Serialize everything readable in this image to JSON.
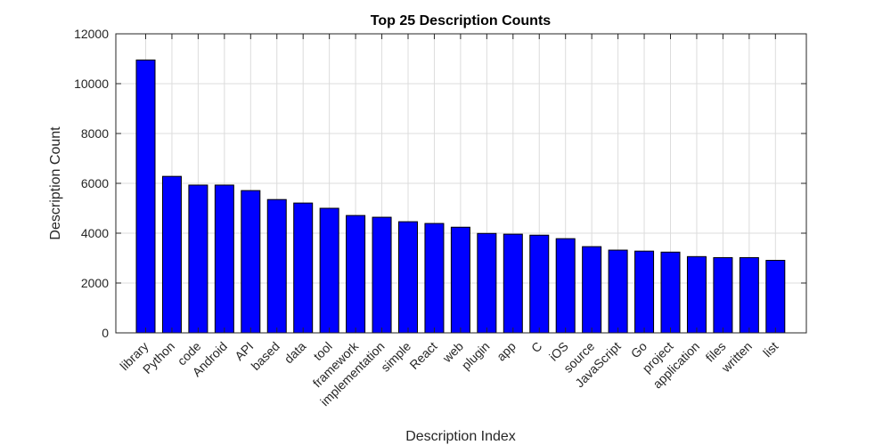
{
  "chart_data": {
    "type": "bar",
    "title": "Top 25 Description Counts",
    "xlabel": "Description Index",
    "ylabel": "Description Count",
    "ylim": [
      0,
      12000
    ],
    "yticks": [
      0,
      2000,
      4000,
      6000,
      8000,
      10000,
      12000
    ],
    "grid": true,
    "bar_color": "#0000ff",
    "bar_edge_color": "#000000",
    "categories": [
      "library",
      "Python",
      "code",
      "Android",
      "API",
      "based",
      "data",
      "tool",
      "framework",
      "implementation",
      "simple",
      "React",
      "web",
      "plugin",
      "app",
      "C",
      "iOS",
      "source",
      "JavaScript",
      "Go",
      "project",
      "application",
      "files",
      "written",
      "list"
    ],
    "values": [
      10950,
      6280,
      5930,
      5930,
      5710,
      5350,
      5210,
      5000,
      4710,
      4640,
      4460,
      4390,
      4240,
      3990,
      3960,
      3920,
      3780,
      3460,
      3320,
      3280,
      3240,
      3060,
      3020,
      3020,
      2910
    ]
  }
}
